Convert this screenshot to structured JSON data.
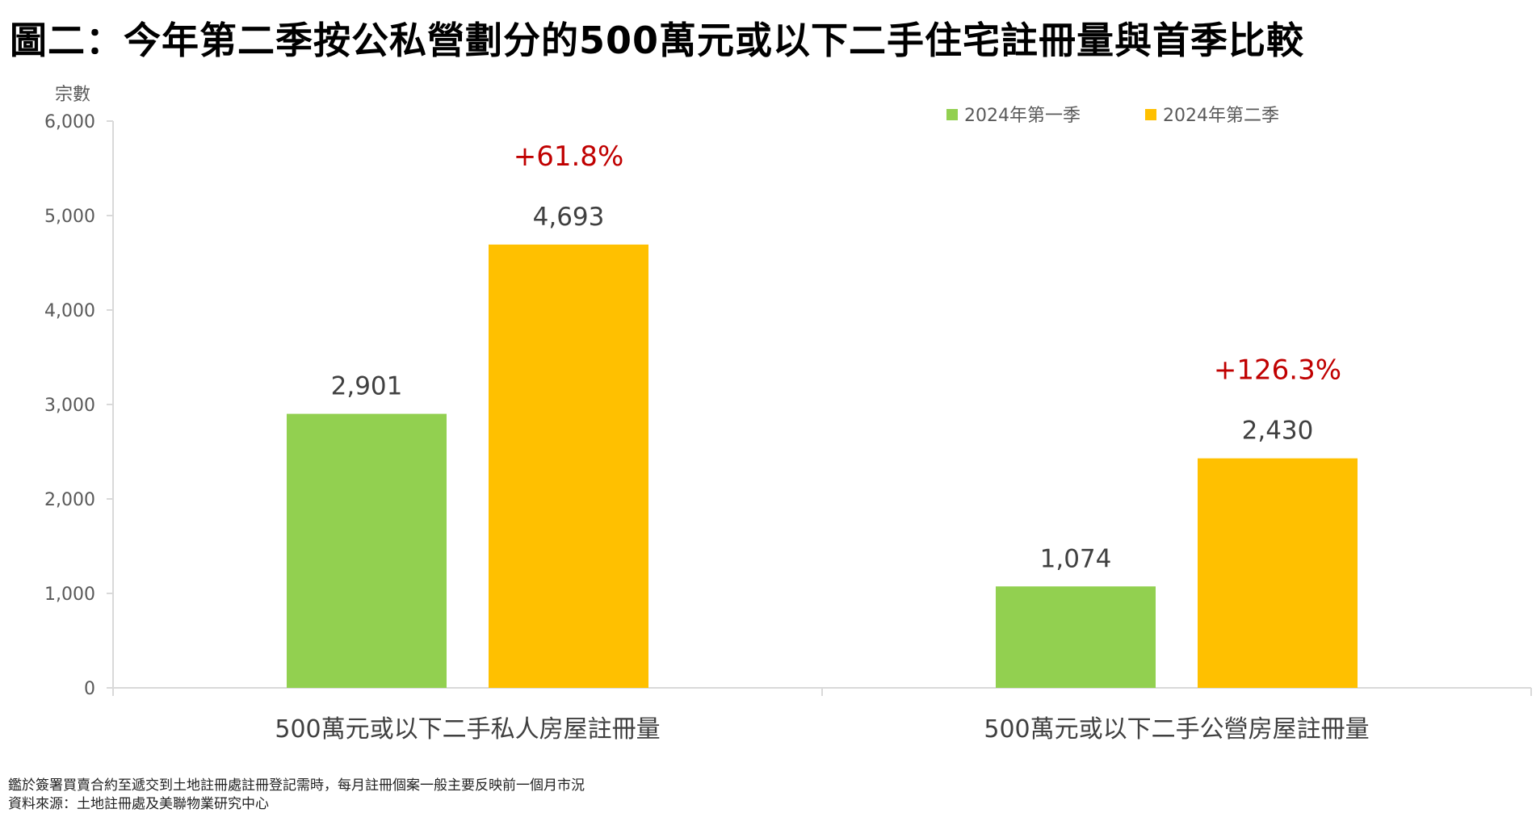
{
  "title": "圖二：今年第二季按公私營劃分的500萬元或以下二手住宅註冊量與首季比較",
  "footnotes": [
    "鑑於簽署買賣合約至遞交到土地註冊處註冊登記需時，每月註冊個案一般主要反映前一個月市況",
    "資料來源：土地註冊處及美聯物業研究中心"
  ],
  "colors": {
    "series1": "#92d050",
    "series2": "#ffc000",
    "change": "#c00000",
    "axis": "#d9d9d9",
    "tick_text": "#595959",
    "label_text": "#404040"
  },
  "chart_data": {
    "type": "bar",
    "title": "圖二：今年第二季按公私營劃分的500萬元或以下二手住宅註冊量與首季比較",
    "ylabel": "宗數",
    "ylim": [
      0,
      6000
    ],
    "yticks": [
      "0",
      "1,000",
      "2,000",
      "3,000",
      "4,000",
      "5,000",
      "6,000"
    ],
    "ytick_values": [
      0,
      1000,
      2000,
      3000,
      4000,
      5000,
      6000
    ],
    "categories": [
      "500萬元或以下二手私人房屋註冊量",
      "500萬元或以下二手公營房屋註冊量"
    ],
    "series": [
      {
        "name": "2024年第一季",
        "values": [
          2901,
          1074
        ],
        "labels": [
          "2,901",
          "1,074"
        ]
      },
      {
        "name": "2024年第二季",
        "values": [
          4693,
          2430
        ],
        "labels": [
          "4,693",
          "2,430"
        ]
      }
    ],
    "annotations": [
      "+61.8%",
      "+126.3%"
    ],
    "legend": "top-right",
    "grid": false
  }
}
